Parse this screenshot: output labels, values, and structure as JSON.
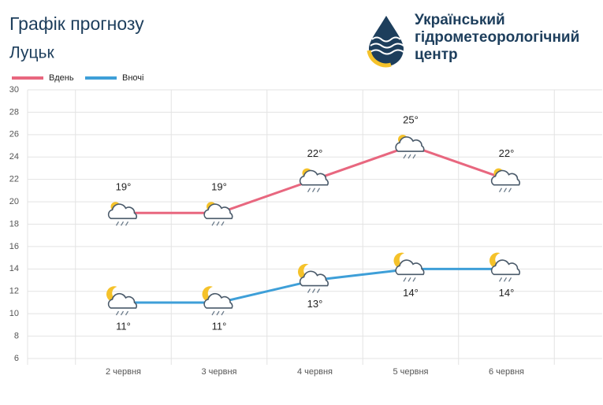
{
  "chart_data": {
    "type": "line",
    "title": "Графік прогнозу",
    "subtitle": "Луцьк",
    "logo": [
      "Український",
      "гідрометеорологічний",
      "центр"
    ],
    "categories": [
      "2 червня",
      "3 червня",
      "4 червня",
      "5 червня",
      "6 червня"
    ],
    "series": [
      {
        "name": "Вдень",
        "color": "#e8677f",
        "values": [
          19,
          19,
          22,
          25,
          22
        ],
        "value_labels": [
          "19°",
          "19°",
          "22°",
          "25°",
          "22°"
        ]
      },
      {
        "name": "Вночі",
        "color": "#3e9fd8",
        "values": [
          11,
          11,
          13,
          14,
          14
        ],
        "value_labels": [
          "11°",
          "11°",
          "13°",
          "14°",
          "14°"
        ]
      }
    ],
    "ylim": [
      6,
      30
    ],
    "yticks": [
      6,
      8,
      10,
      12,
      14,
      16,
      18,
      20,
      22,
      24,
      26,
      28,
      30
    ],
    "grid": true
  }
}
